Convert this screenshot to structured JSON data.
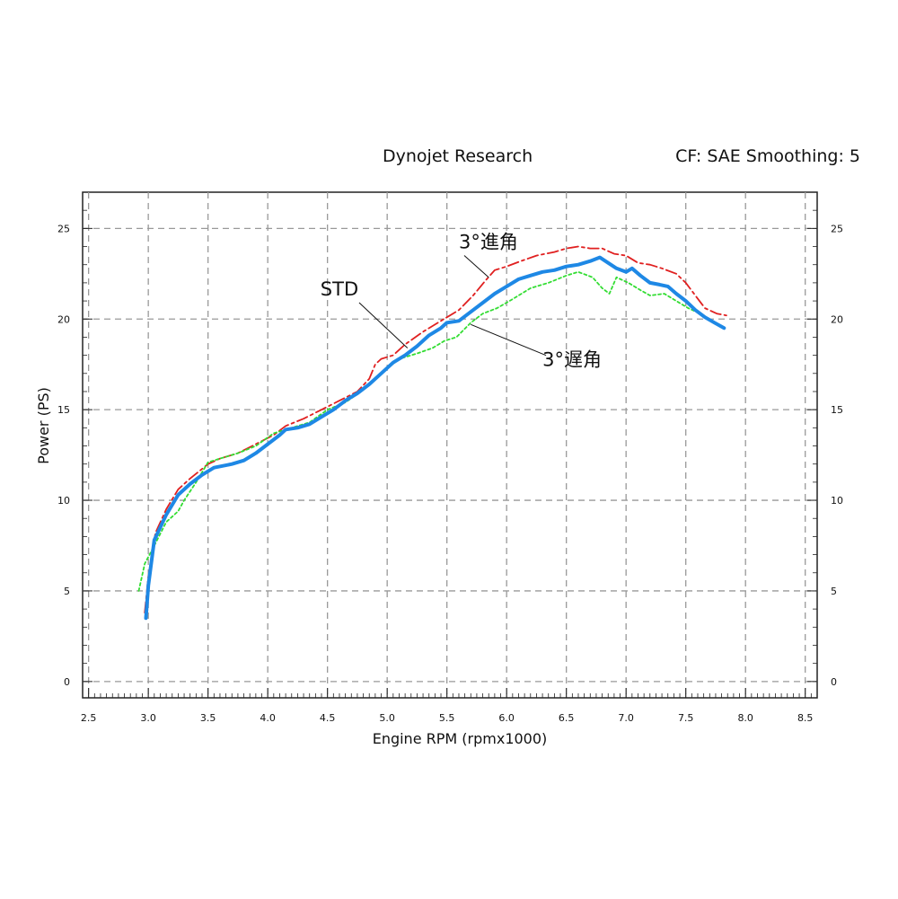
{
  "header": {
    "title": "Dynojet Research",
    "settings": "CF: SAE Smoothing: 5"
  },
  "chart_data": {
    "type": "line",
    "xlabel": "Engine RPM (rpmx1000)",
    "ylabel": "Power (PS)",
    "xlim": [
      2.45,
      8.6
    ],
    "ylim": [
      -0.9,
      27
    ],
    "x_ticks": [
      "2.5",
      "3.0",
      "3.5",
      "4.0",
      "4.5",
      "5.0",
      "5.5",
      "6.0",
      "6.5",
      "7.0",
      "7.5",
      "8.0",
      "8.5"
    ],
    "y_ticks": [
      "0",
      "5",
      "10",
      "15",
      "20",
      "25"
    ],
    "grid": true,
    "series": [
      {
        "name": "STD",
        "color": "#1e88e5",
        "style": "solid",
        "label_pos": [
          4.6,
          21.3
        ],
        "points": [
          [
            2.98,
            3.5
          ],
          [
            3.0,
            5.3
          ],
          [
            3.05,
            7.8
          ],
          [
            3.15,
            9.2
          ],
          [
            3.25,
            10.3
          ],
          [
            3.35,
            10.9
          ],
          [
            3.45,
            11.4
          ],
          [
            3.55,
            11.8
          ],
          [
            3.7,
            12.0
          ],
          [
            3.8,
            12.2
          ],
          [
            3.9,
            12.6
          ],
          [
            4.0,
            13.1
          ],
          [
            4.1,
            13.6
          ],
          [
            4.15,
            13.9
          ],
          [
            4.25,
            14.0
          ],
          [
            4.35,
            14.2
          ],
          [
            4.45,
            14.6
          ],
          [
            4.55,
            15.0
          ],
          [
            4.65,
            15.5
          ],
          [
            4.75,
            15.9
          ],
          [
            4.85,
            16.4
          ],
          [
            4.95,
            17.0
          ],
          [
            5.05,
            17.6
          ],
          [
            5.15,
            18.0
          ],
          [
            5.25,
            18.5
          ],
          [
            5.35,
            19.1
          ],
          [
            5.45,
            19.5
          ],
          [
            5.5,
            19.8
          ],
          [
            5.6,
            19.9
          ],
          [
            5.7,
            20.4
          ],
          [
            5.8,
            20.9
          ],
          [
            5.9,
            21.4
          ],
          [
            6.0,
            21.8
          ],
          [
            6.1,
            22.2
          ],
          [
            6.2,
            22.4
          ],
          [
            6.3,
            22.6
          ],
          [
            6.4,
            22.7
          ],
          [
            6.5,
            22.9
          ],
          [
            6.6,
            23.0
          ],
          [
            6.7,
            23.2
          ],
          [
            6.78,
            23.4
          ],
          [
            6.85,
            23.1
          ],
          [
            6.92,
            22.8
          ],
          [
            7.0,
            22.6
          ],
          [
            7.05,
            22.8
          ],
          [
            7.12,
            22.4
          ],
          [
            7.2,
            22.0
          ],
          [
            7.28,
            21.9
          ],
          [
            7.35,
            21.8
          ],
          [
            7.42,
            21.4
          ],
          [
            7.5,
            21.0
          ],
          [
            7.58,
            20.5
          ],
          [
            7.66,
            20.1
          ],
          [
            7.74,
            19.8
          ],
          [
            7.82,
            19.5
          ]
        ]
      },
      {
        "name": "3°進角",
        "color": "#e02020",
        "style": "dashdot",
        "label_pos": [
          5.6,
          23.9
        ],
        "points": [
          [
            2.97,
            3.8
          ],
          [
            3.0,
            5.8
          ],
          [
            3.06,
            8.2
          ],
          [
            3.15,
            9.5
          ],
          [
            3.25,
            10.6
          ],
          [
            3.35,
            11.2
          ],
          [
            3.5,
            12.0
          ],
          [
            3.6,
            12.3
          ],
          [
            3.75,
            12.6
          ],
          [
            3.9,
            13.1
          ],
          [
            4.05,
            13.6
          ],
          [
            4.15,
            14.1
          ],
          [
            4.3,
            14.5
          ],
          [
            4.45,
            15.0
          ],
          [
            4.6,
            15.5
          ],
          [
            4.75,
            16.0
          ],
          [
            4.85,
            16.7
          ],
          [
            4.9,
            17.5
          ],
          [
            4.95,
            17.8
          ],
          [
            5.05,
            18.0
          ],
          [
            5.15,
            18.6
          ],
          [
            5.3,
            19.3
          ],
          [
            5.45,
            19.9
          ],
          [
            5.6,
            20.5
          ],
          [
            5.72,
            21.3
          ],
          [
            5.82,
            22.1
          ],
          [
            5.9,
            22.7
          ],
          [
            6.0,
            22.9
          ],
          [
            6.12,
            23.2
          ],
          [
            6.25,
            23.5
          ],
          [
            6.4,
            23.7
          ],
          [
            6.5,
            23.9
          ],
          [
            6.6,
            24.0
          ],
          [
            6.7,
            23.9
          ],
          [
            6.8,
            23.9
          ],
          [
            6.9,
            23.6
          ],
          [
            7.0,
            23.5
          ],
          [
            7.1,
            23.1
          ],
          [
            7.2,
            23.0
          ],
          [
            7.3,
            22.8
          ],
          [
            7.42,
            22.5
          ],
          [
            7.5,
            22.0
          ],
          [
            7.58,
            21.3
          ],
          [
            7.66,
            20.6
          ],
          [
            7.76,
            20.3
          ],
          [
            7.84,
            20.2
          ]
        ]
      },
      {
        "name": "3°遅角",
        "color": "#33dd33",
        "style": "dotted",
        "label_pos": [
          6.3,
          17.4
        ],
        "points": [
          [
            2.92,
            5.0
          ],
          [
            2.97,
            6.5
          ],
          [
            3.05,
            7.5
          ],
          [
            3.15,
            8.8
          ],
          [
            3.25,
            9.4
          ],
          [
            3.3,
            10.0
          ],
          [
            3.4,
            11.0
          ],
          [
            3.5,
            12.1
          ],
          [
            3.6,
            12.3
          ],
          [
            3.75,
            12.6
          ],
          [
            3.9,
            13.0
          ],
          [
            4.05,
            13.7
          ],
          [
            4.2,
            14.0
          ],
          [
            4.35,
            14.3
          ],
          [
            4.5,
            15.0
          ],
          [
            4.65,
            15.4
          ],
          [
            4.8,
            16.1
          ],
          [
            4.95,
            17.0
          ],
          [
            5.1,
            17.8
          ],
          [
            5.25,
            18.1
          ],
          [
            5.38,
            18.4
          ],
          [
            5.48,
            18.8
          ],
          [
            5.58,
            19.0
          ],
          [
            5.7,
            19.8
          ],
          [
            5.8,
            20.3
          ],
          [
            5.92,
            20.6
          ],
          [
            6.05,
            21.1
          ],
          [
            6.2,
            21.7
          ],
          [
            6.35,
            22.0
          ],
          [
            6.5,
            22.4
          ],
          [
            6.6,
            22.6
          ],
          [
            6.72,
            22.3
          ],
          [
            6.8,
            21.7
          ],
          [
            6.86,
            21.4
          ],
          [
            6.92,
            22.3
          ],
          [
            7.02,
            22.0
          ],
          [
            7.12,
            21.6
          ],
          [
            7.2,
            21.3
          ],
          [
            7.32,
            21.4
          ],
          [
            7.42,
            21.0
          ],
          [
            7.52,
            20.6
          ],
          [
            7.62,
            20.3
          ],
          [
            7.72,
            19.9
          ]
        ]
      }
    ]
  }
}
